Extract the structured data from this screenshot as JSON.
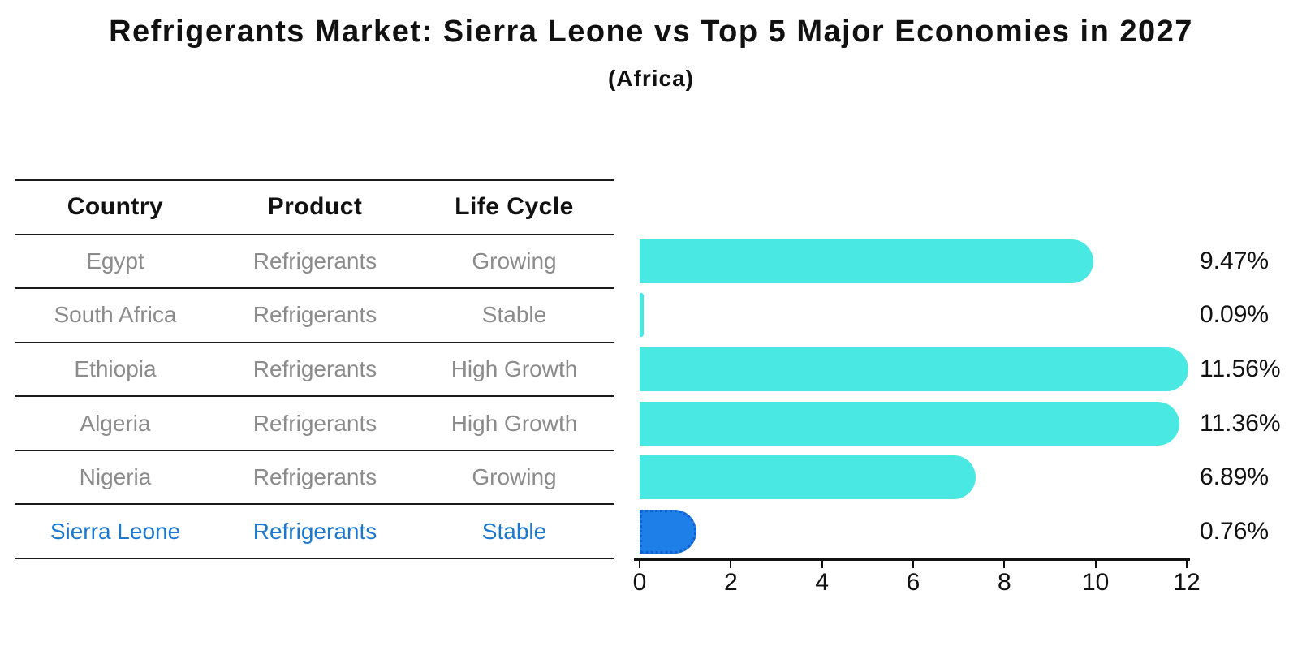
{
  "title": "Refrigerants Market: Sierra Leone vs Top 5 Major Economies in 2027",
  "subtitle": "(Africa)",
  "table": {
    "headers": [
      "Country",
      "Product",
      "Life Cycle"
    ],
    "rows": [
      {
        "country": "Egypt",
        "product": "Refrigerants",
        "life_cycle": "Growing",
        "highlight": false
      },
      {
        "country": "South Africa",
        "product": "Refrigerants",
        "life_cycle": "Stable",
        "highlight": false
      },
      {
        "country": "Ethiopia",
        "product": "Refrigerants",
        "life_cycle": "High Growth",
        "highlight": false
      },
      {
        "country": "Algeria",
        "product": "Refrigerants",
        "life_cycle": "High Growth",
        "highlight": false
      },
      {
        "country": "Nigeria",
        "product": "Refrigerants",
        "life_cycle": "Growing",
        "highlight": false
      },
      {
        "country": "Sierra Leone",
        "product": "Refrigerants",
        "life_cycle": "Stable",
        "highlight": true
      }
    ]
  },
  "chart_data": {
    "type": "bar",
    "orientation": "horizontal",
    "title": "Refrigerants Market: Sierra Leone vs Top 5 Major Economies in 2027",
    "subtitle": "(Africa)",
    "categories": [
      "Egypt",
      "South Africa",
      "Ethiopia",
      "Algeria",
      "Nigeria",
      "Sierra Leone"
    ],
    "values": [
      9.47,
      0.09,
      11.56,
      11.36,
      6.89,
      0.76
    ],
    "value_labels": [
      "9.47%",
      "0.09%",
      "11.56%",
      "11.36%",
      "6.89%",
      "0.76%"
    ],
    "xlim": [
      0,
      12
    ],
    "xticks": [
      0,
      2,
      4,
      6,
      8,
      10,
      12
    ],
    "grid": false,
    "legend": false,
    "highlight_index": 5
  },
  "colors": {
    "bar": "#4AE8E3",
    "highlight_bar": "#1E7FE8",
    "highlight_bar_edge": "#0F5FD0",
    "highlight_text": "#1C78CF",
    "table_text": "#8B8B8B",
    "header_text": "#111111",
    "axis": "#111111"
  }
}
